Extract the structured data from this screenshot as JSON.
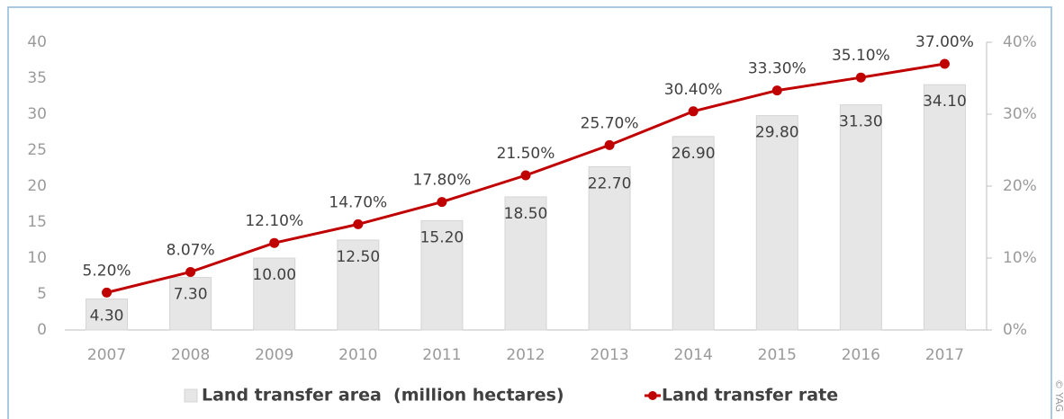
{
  "chart_data": {
    "type": "combo",
    "categories": [
      "2007",
      "2008",
      "2009",
      "2010",
      "2011",
      "2012",
      "2013",
      "2014",
      "2015",
      "2016",
      "2017"
    ],
    "series": [
      {
        "name": "Land transfer area  (million hectares)",
        "type": "bar",
        "color": "#e6e6e6",
        "values": [
          4.3,
          7.3,
          10.0,
          12.5,
          15.2,
          18.5,
          22.7,
          26.9,
          29.8,
          31.3,
          34.1
        ],
        "value_labels": [
          "4.30",
          "7.30",
          "10.00",
          "12.50",
          "15.20",
          "18.50",
          "22.70",
          "26.90",
          "29.80",
          "31.30",
          "34.10"
        ]
      },
      {
        "name": "Land transfer rate",
        "type": "line",
        "axis": "y2",
        "color": "#c00000",
        "values": [
          5.2,
          8.07,
          12.1,
          14.7,
          17.8,
          21.5,
          25.7,
          30.4,
          33.3,
          35.1,
          37.0
        ],
        "value_labels": [
          "5.20%",
          "8.07%",
          "12.10%",
          "14.70%",
          "17.80%",
          "21.50%",
          "25.70%",
          "30.40%",
          "33.30%",
          "35.10%",
          "37.00%"
        ]
      }
    ],
    "ylim": [
      0,
      40
    ],
    "yticks": [
      0,
      5,
      10,
      15,
      20,
      25,
      30,
      35,
      40
    ],
    "y2lim": [
      0,
      40
    ],
    "y2ticks": [
      {
        "value": 0,
        "label": "0%"
      },
      {
        "value": 10,
        "label": "10%"
      },
      {
        "value": 20,
        "label": "20%"
      },
      {
        "value": 30,
        "label": "30%"
      },
      {
        "value": 40,
        "label": "40%"
      }
    ],
    "legend": "bottom",
    "grid": false
  },
  "watermark": "© YAG"
}
